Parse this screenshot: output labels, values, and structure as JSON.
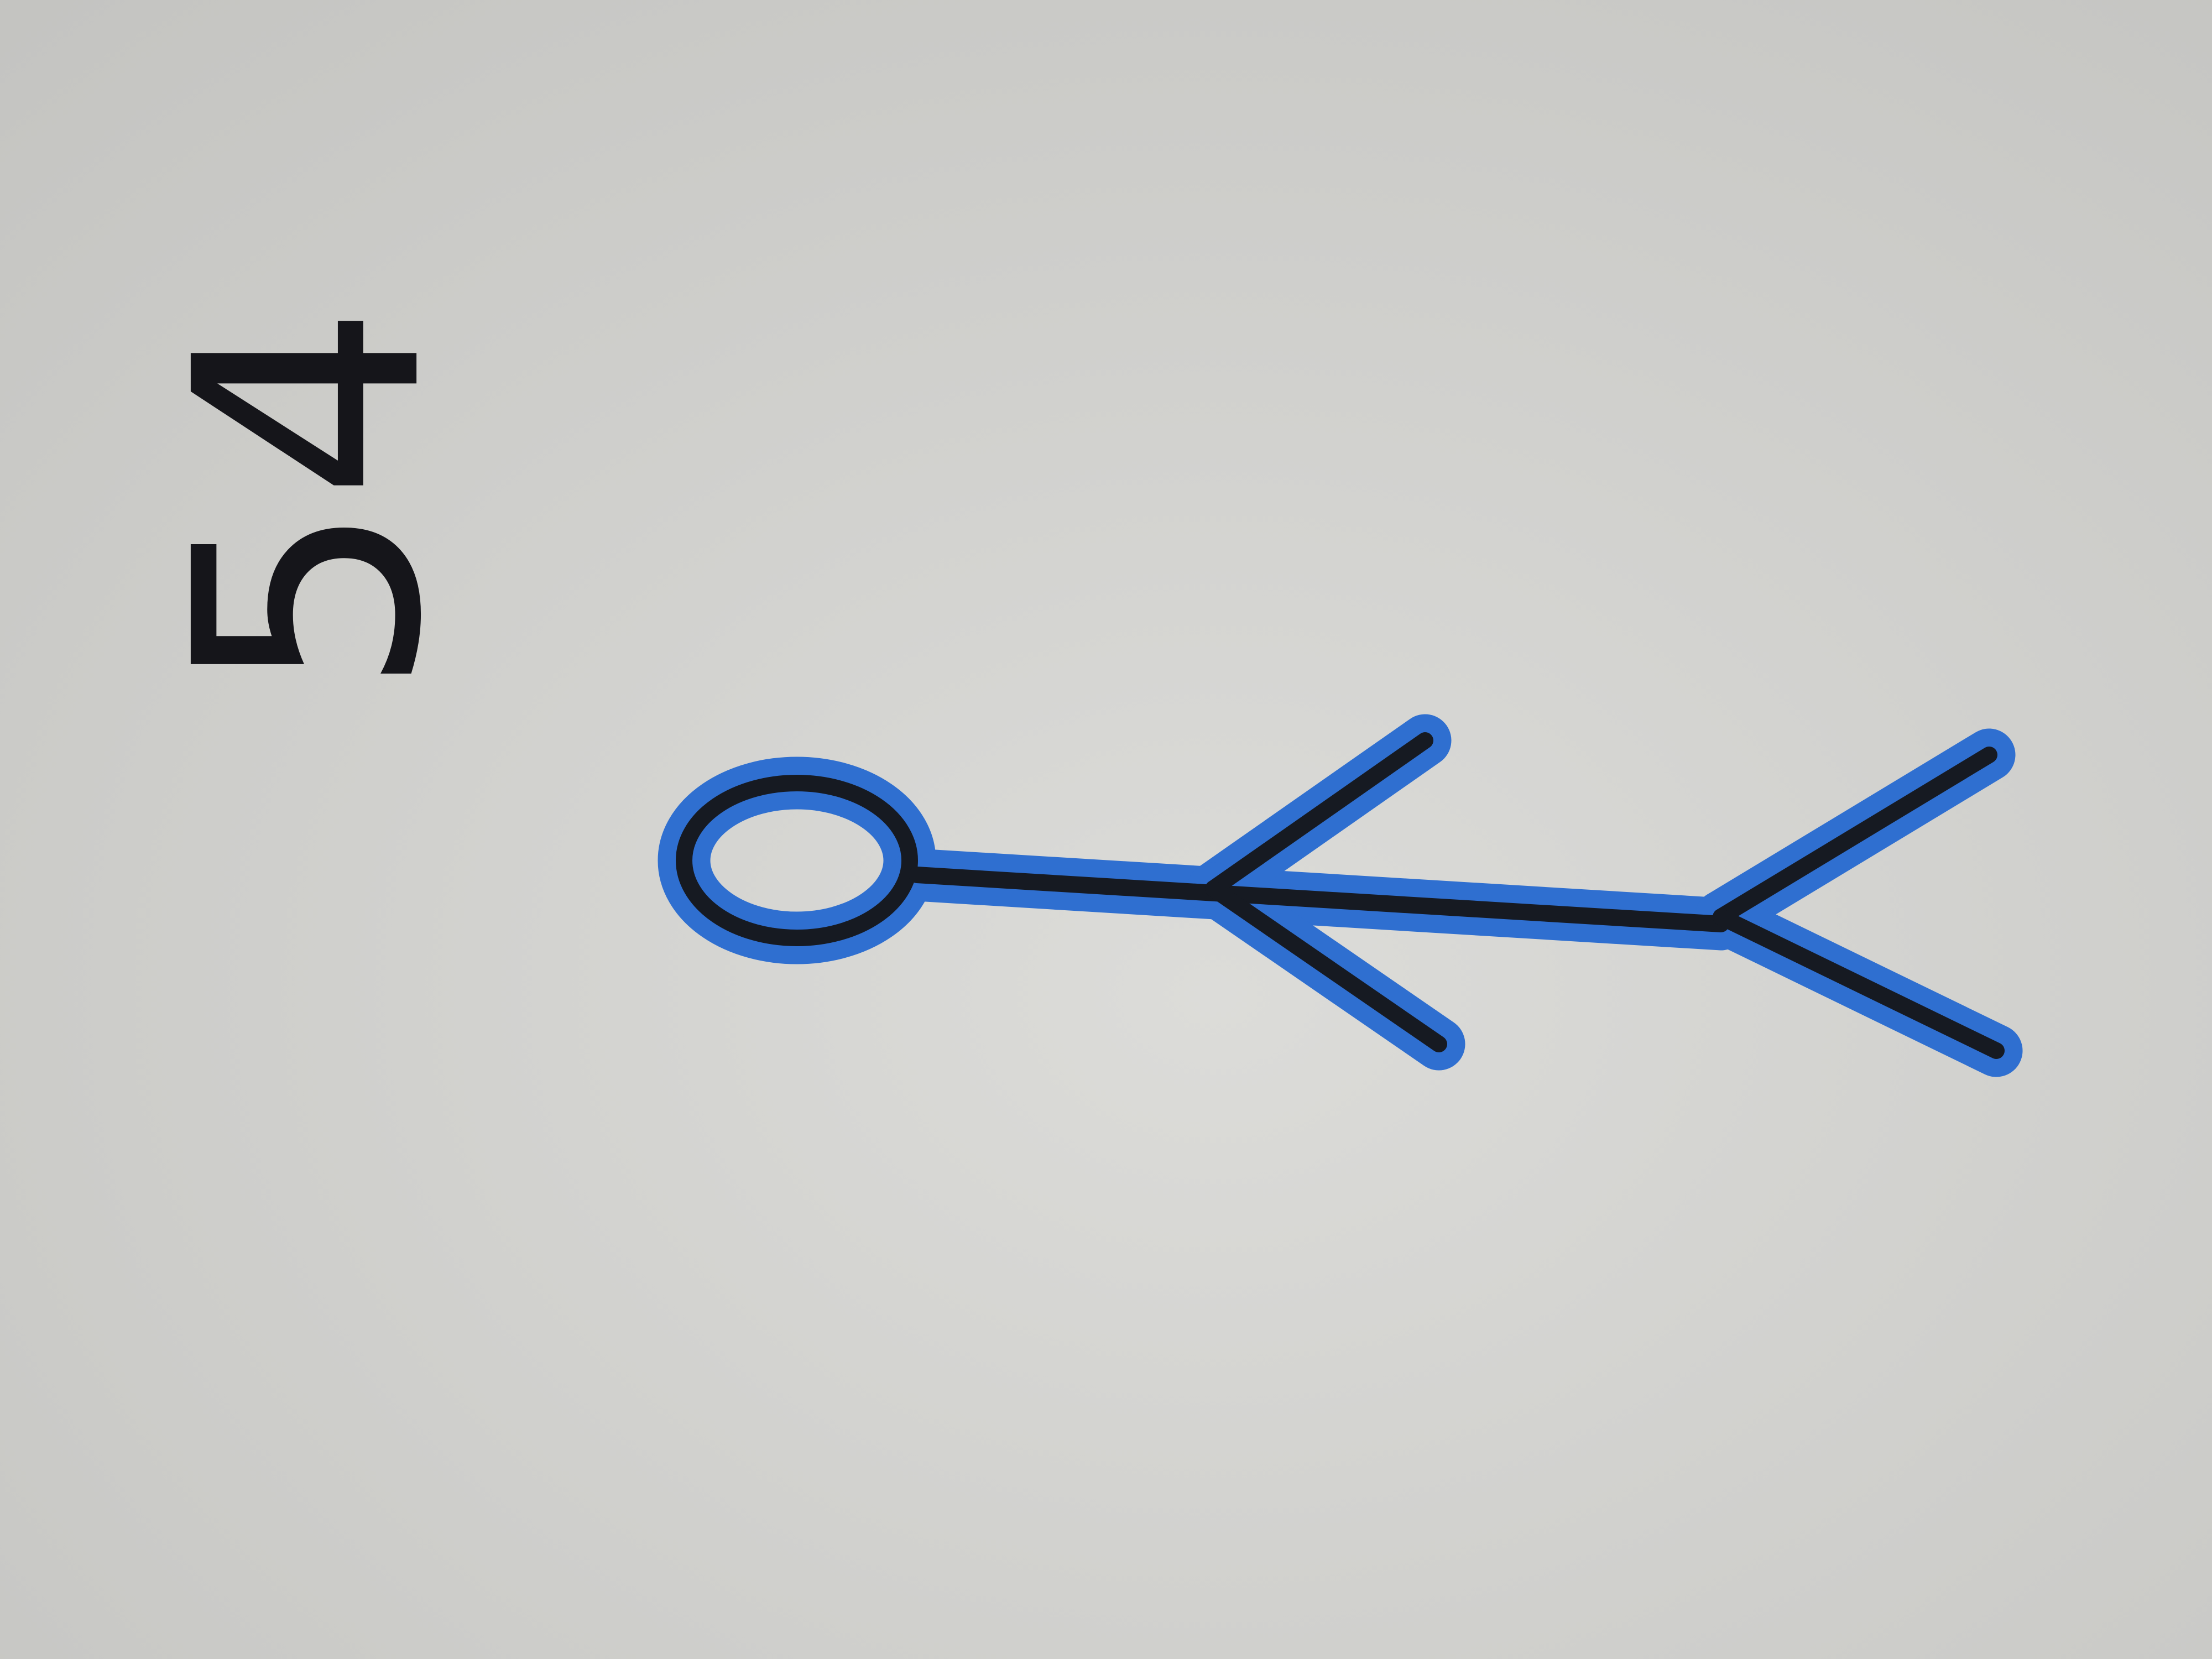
{
  "text": "54"
}
